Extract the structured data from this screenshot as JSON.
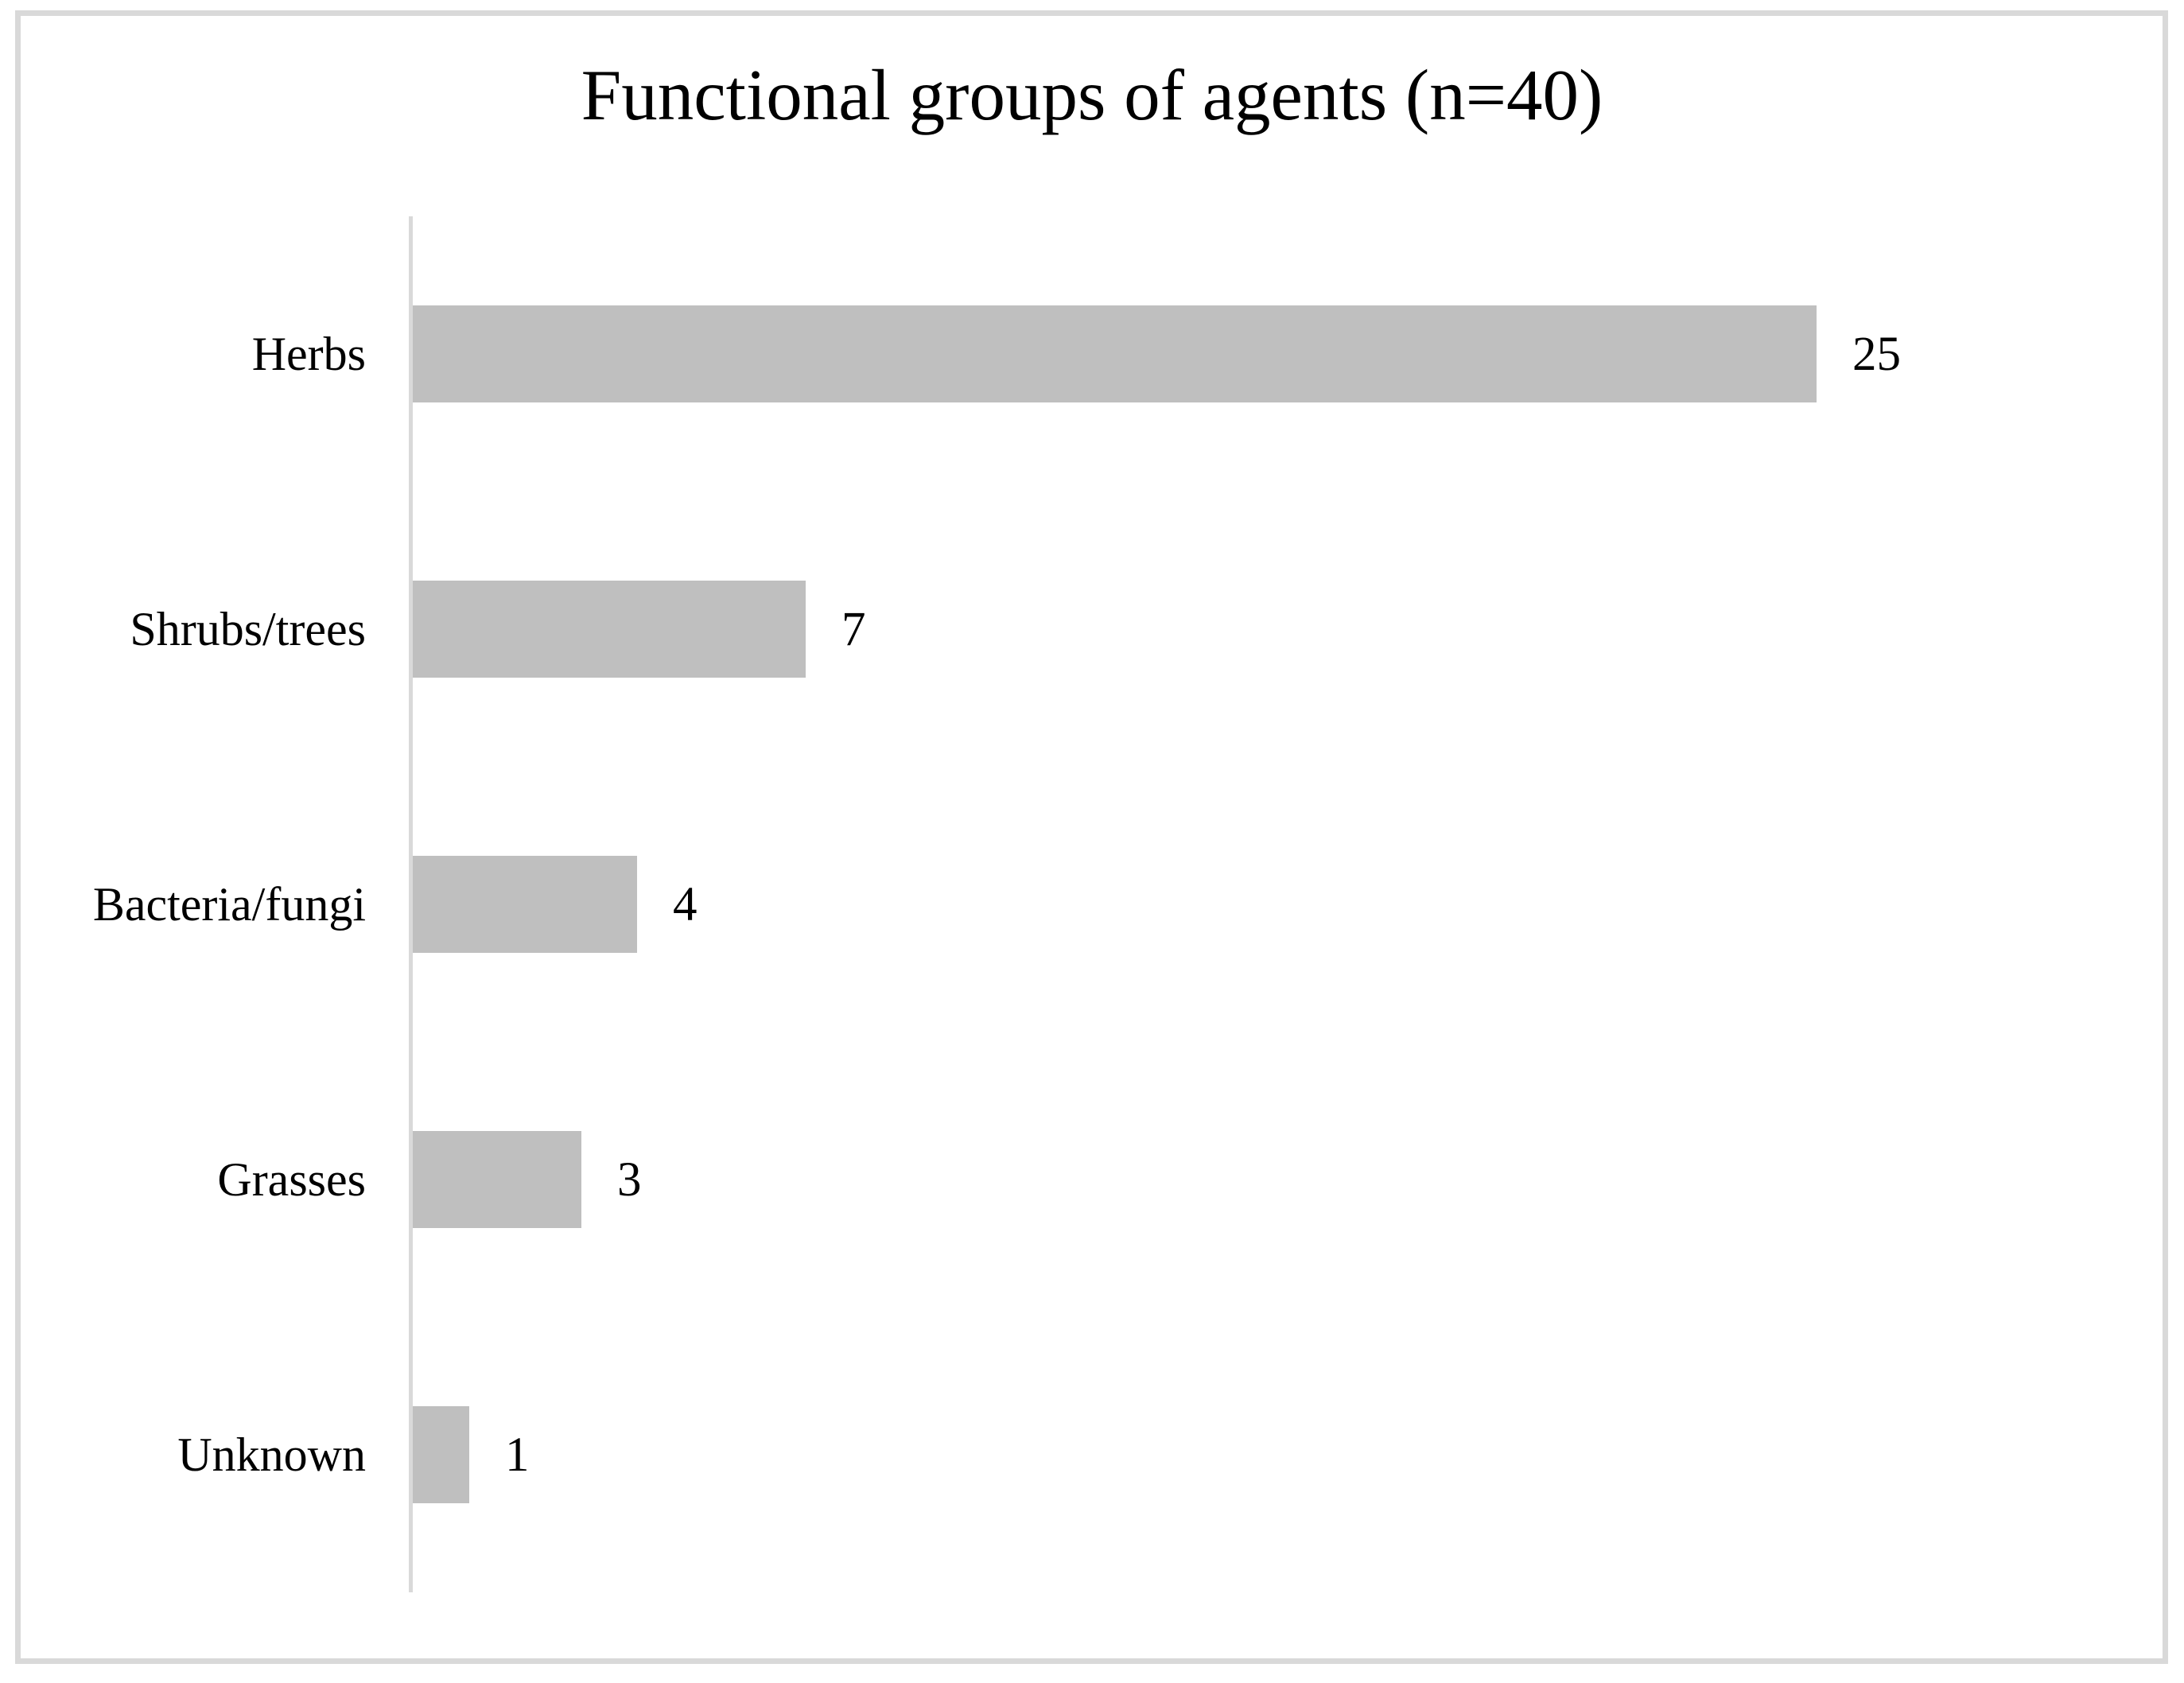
{
  "chart_data": {
    "type": "bar",
    "orientation": "horizontal",
    "title": "Functional groups of agents (n=40)",
    "categories": [
      "Herbs",
      "Shrubs/trees",
      "Bacteria/fungi",
      "Grasses",
      "Unknown"
    ],
    "values": [
      25,
      7,
      4,
      3,
      1
    ],
    "value_labels": [
      "25",
      "7",
      "4",
      "3",
      "1"
    ],
    "xlabel": "",
    "ylabel": "",
    "xlim": [
      0,
      25
    ],
    "grid": false,
    "legend": false,
    "data_labels_position": "outside-end",
    "bar_color": "#bfbfbf",
    "axis_line_color": "#d9d9d9",
    "frame_border_color": "#d9d9d9",
    "text_color": "#000000",
    "background_color": "#ffffff"
  }
}
